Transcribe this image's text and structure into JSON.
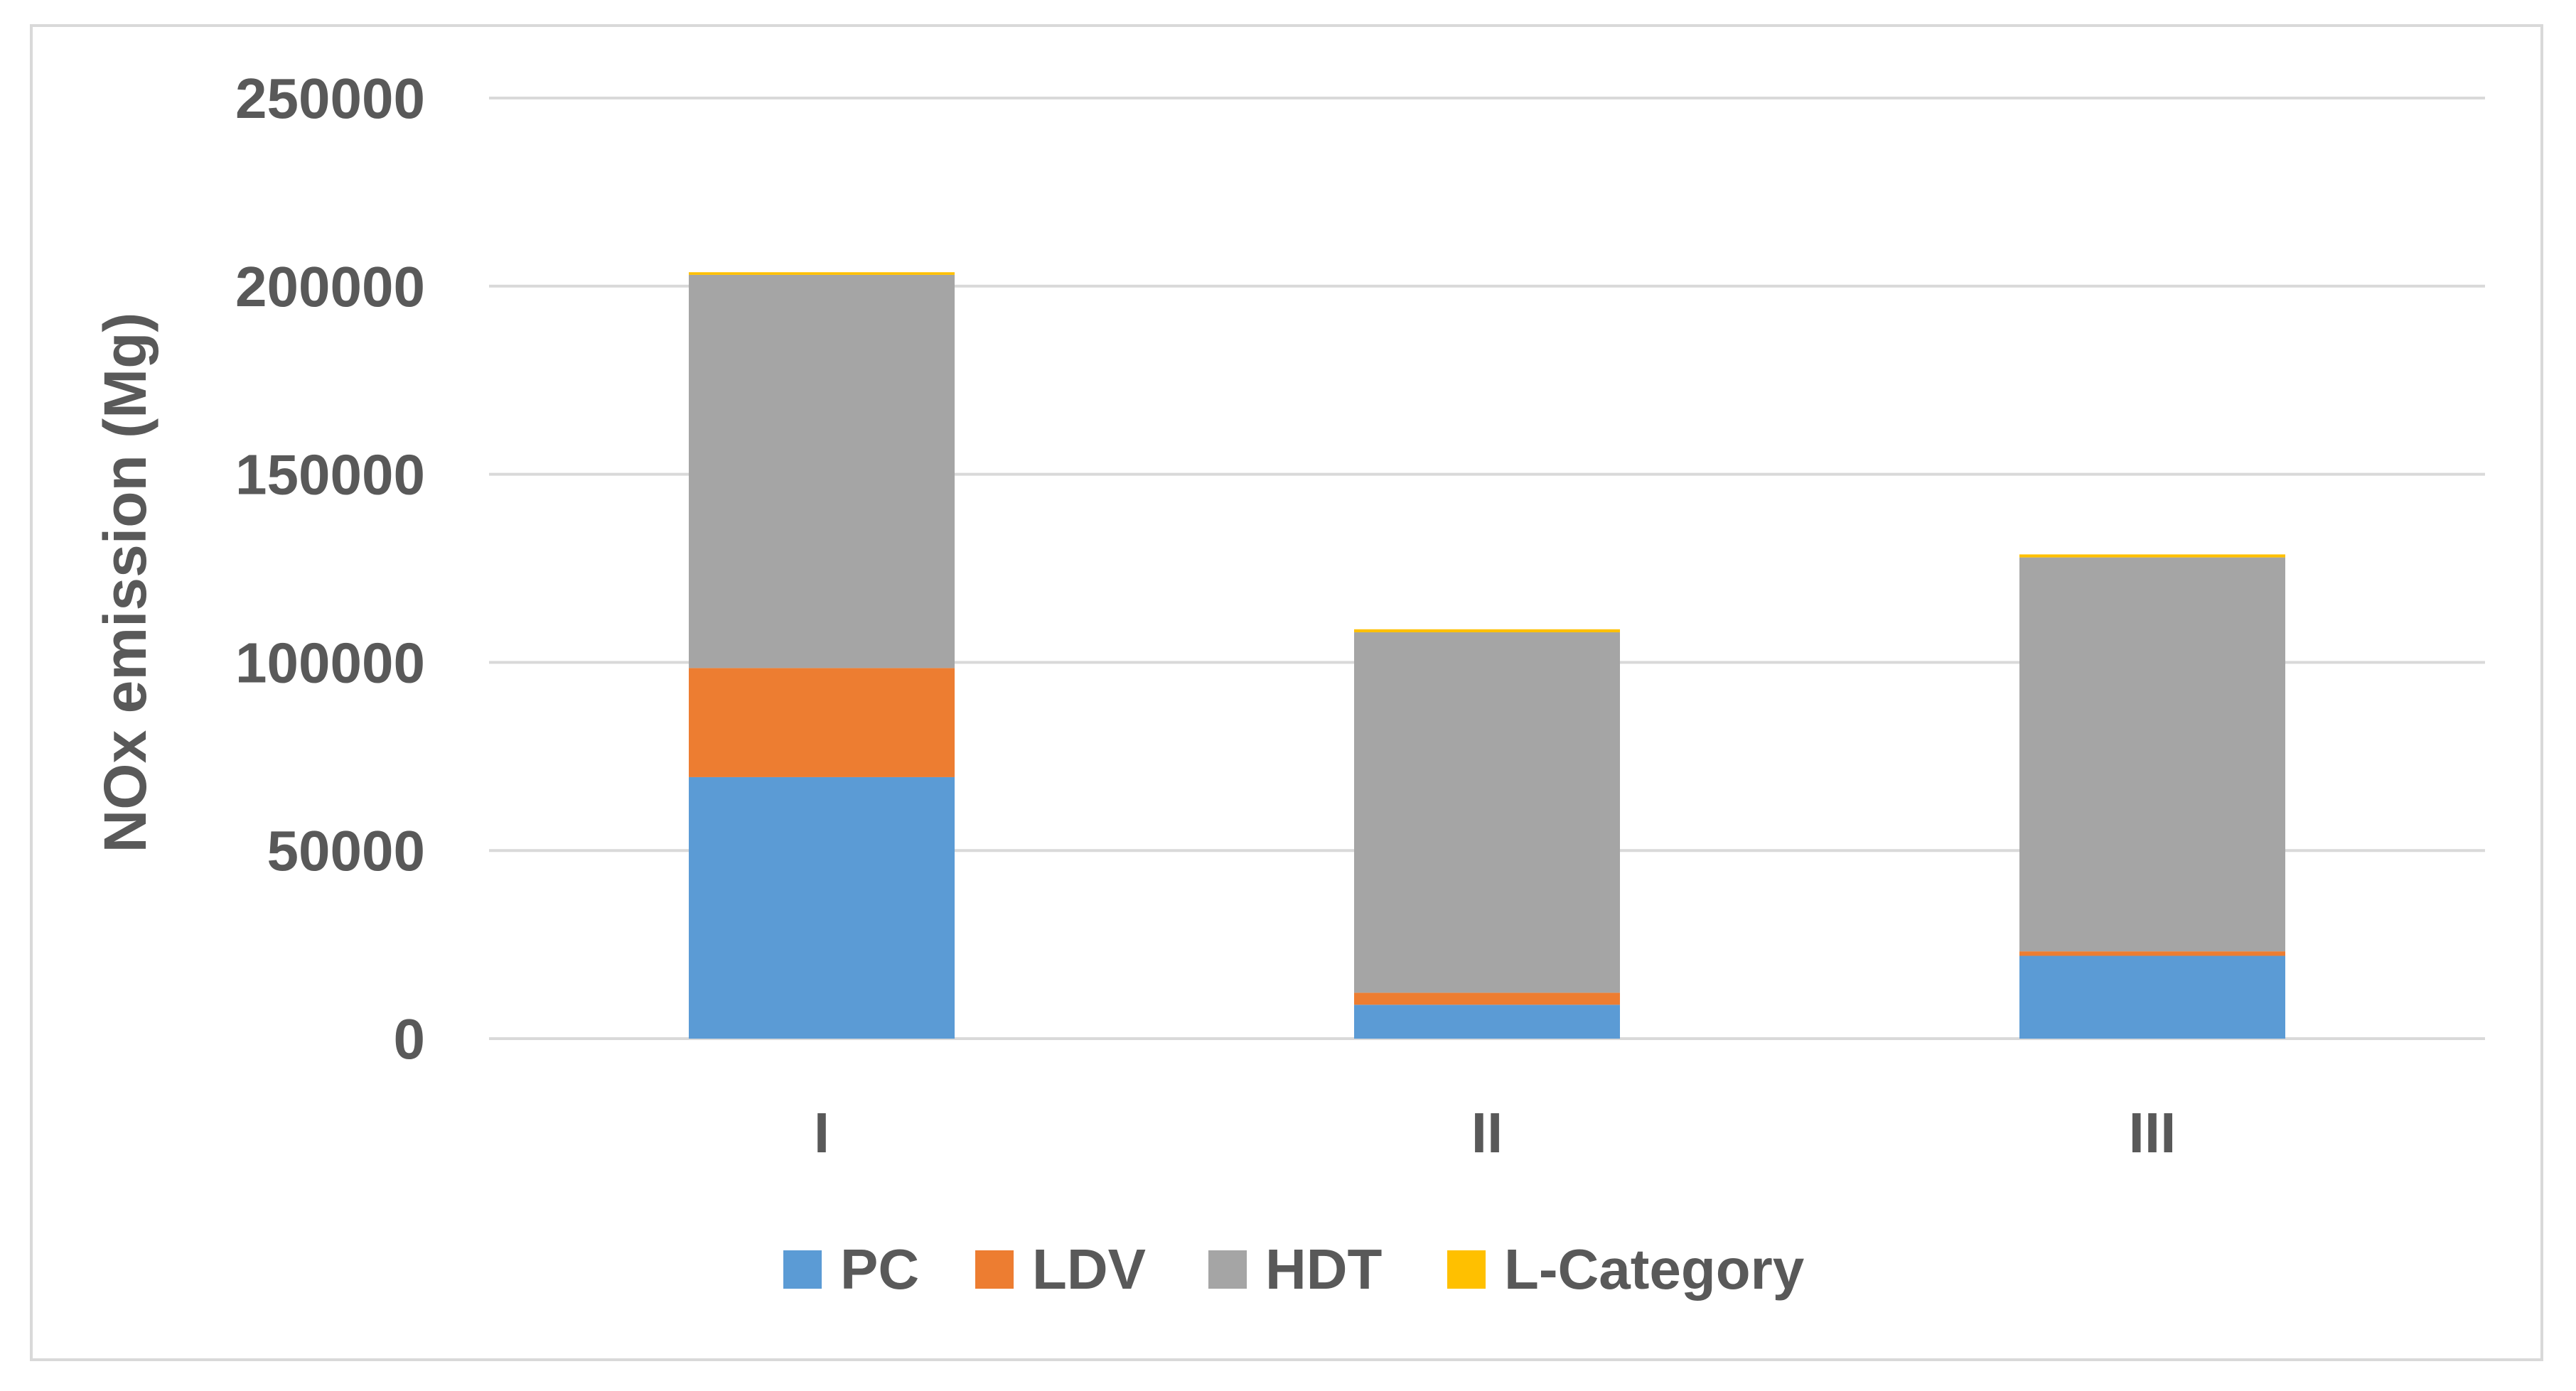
{
  "chart_data": {
    "type": "bar",
    "stacked": true,
    "categories": [
      "I",
      "II",
      "III"
    ],
    "series": [
      {
        "name": "PC",
        "color": "#5b9bd5",
        "values": [
          69500,
          9000,
          22000
        ]
      },
      {
        "name": "LDV",
        "color": "#ed7d31",
        "values": [
          29000,
          3200,
          1200
        ]
      },
      {
        "name": "HDT",
        "color": "#a5a5a5",
        "values": [
          104500,
          95800,
          104700
        ]
      },
      {
        "name": "L-Category",
        "color": "#ffc000",
        "values": [
          700,
          800,
          800
        ]
      }
    ],
    "title": "",
    "xlabel": "",
    "ylabel": "NOx emission  (Mg)",
    "ylim": [
      0,
      250000
    ],
    "yticks": [
      "0",
      "50000",
      "100000",
      "150000",
      "200000",
      "250000"
    ],
    "grid": true,
    "legend_position": "bottom"
  }
}
